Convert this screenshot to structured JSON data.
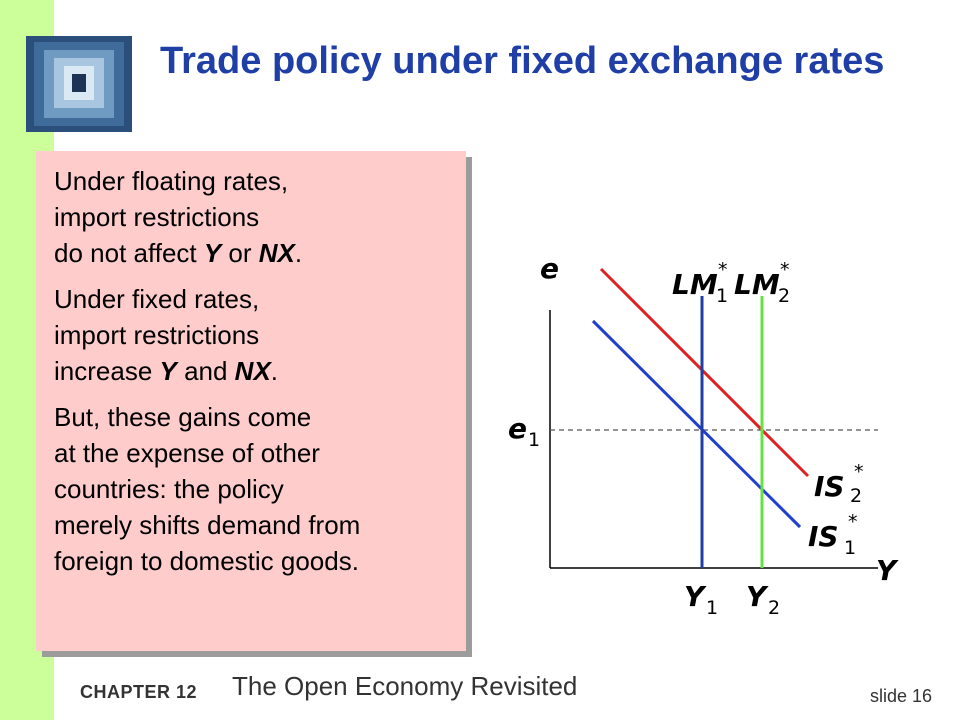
{
  "title": "Trade policy under fixed exchange rates",
  "paragraphs": [
    {
      "segments": [
        "Under floating rates,\nimport restrictions\ndo not affect ",
        "Y",
        " or ",
        "NX",
        "."
      ]
    },
    {
      "segments": [
        "Under fixed rates,\nimport restrictions\nincrease ",
        "Y",
        " and ",
        "NX",
        "."
      ]
    },
    {
      "segments": [
        "But, these gains come\nat the expense of other\ncountries:  the policy\nmerely shifts demand from\nforeign to domestic goods."
      ]
    }
  ],
  "diagram": {
    "axis_labels": {
      "y": "e",
      "x": "Y"
    },
    "e1": {
      "main": "e",
      "sub": "1"
    },
    "Y1": {
      "main": "Y",
      "sub": "1"
    },
    "Y2": {
      "main": "Y",
      "sub": "2"
    },
    "LM1": {
      "main": "LM",
      "sub": "1",
      "star": "*"
    },
    "LM2": {
      "main": "LM",
      "sub": "2",
      "star": "*"
    },
    "IS1": {
      "main": "IS",
      "sub": "1",
      "star": "*"
    },
    "IS2": {
      "main": "IS",
      "sub": "2",
      "star": "*"
    },
    "colors": {
      "LM1": "#1f3fa6",
      "LM2": "#66e044",
      "IS1": "#1f3fcc",
      "IS2": "#dd2222",
      "dashed": "#555555"
    }
  },
  "footer": {
    "chapter": "CHAPTER 12",
    "subtitle": "The Open Economy Revisited",
    "slide": "slide 16"
  }
}
